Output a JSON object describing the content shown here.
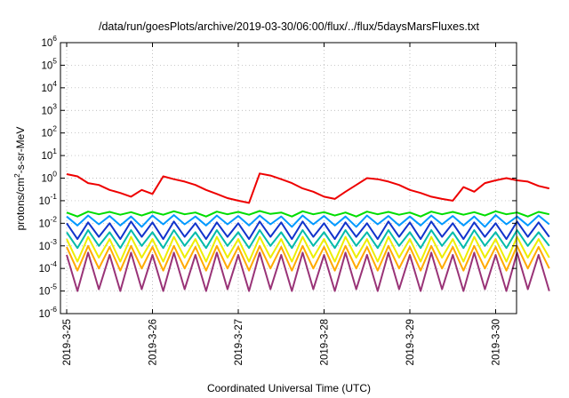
{
  "chart_data": {
    "type": "line",
    "title": "/data/run/goesPlots/archive/2019-03-30/06:00/flux/../flux/5daysMarsFluxes.txt",
    "xlabel": "Coordinated Universal Time (UTC)",
    "ylabel": "protons/cm2-s-sr-MeV",
    "ylabel_parts": {
      "before": "protons/cm",
      "sup": "2",
      "after": "-s-sr-MeV"
    },
    "y_scale": "log",
    "ylim": [
      1e-06,
      1000000.0
    ],
    "y_ticks": [
      {
        "exp": -6,
        "base": "10",
        "sup": "-6"
      },
      {
        "exp": -5,
        "base": "10",
        "sup": "-5"
      },
      {
        "exp": -4,
        "base": "10",
        "sup": "-4"
      },
      {
        "exp": -3,
        "base": "10",
        "sup": "-3"
      },
      {
        "exp": -2,
        "base": "10",
        "sup": "-2"
      },
      {
        "exp": -1,
        "base": "10",
        "sup": "-1"
      },
      {
        "exp": 0,
        "base": "10",
        "sup": "0"
      },
      {
        "exp": 1,
        "base": "10",
        "sup": "1"
      },
      {
        "exp": 2,
        "base": "10",
        "sup": "2"
      },
      {
        "exp": 3,
        "base": "10",
        "sup": "3"
      },
      {
        "exp": 4,
        "base": "10",
        "sup": "4"
      },
      {
        "exp": 5,
        "base": "10",
        "sup": "5"
      },
      {
        "exp": 6,
        "base": "10",
        "sup": "6"
      }
    ],
    "x_ticks": [
      "2019-3-25",
      "2019-3-26",
      "2019-3-27",
      "2019-3-28",
      "2019-3-29",
      "2019-3-30"
    ],
    "xlim": [
      "2019-03-25 00:00",
      "2019-03-30 06:00"
    ],
    "grid": true,
    "legend": "none",
    "sampling": "every 3 hours",
    "series": [
      {
        "color": "#ee0000",
        "values": [
          1.5,
          1.2,
          0.6,
          0.5,
          0.3,
          0.22,
          0.15,
          0.3,
          0.2,
          1.2,
          0.9,
          0.7,
          0.5,
          0.3,
          0.2,
          0.13,
          0.1,
          0.08,
          1.6,
          1.3,
          0.9,
          0.6,
          0.35,
          0.25,
          0.15,
          0.12,
          0.25,
          0.5,
          1.0,
          0.9,
          0.7,
          0.5,
          0.3,
          0.22,
          0.15,
          0.12,
          0.1,
          0.4,
          0.25,
          0.6,
          0.8,
          1.0,
          0.8,
          0.7,
          0.45,
          0.35
        ]
      },
      {
        "color": "#00dd00",
        "values": [
          0.03,
          0.02,
          0.033,
          0.025,
          0.032,
          0.024,
          0.031,
          0.022,
          0.032,
          0.024,
          0.034,
          0.025,
          0.03,
          0.02,
          0.033,
          0.025,
          0.032,
          0.024,
          0.035,
          0.026,
          0.03,
          0.02,
          0.034,
          0.025,
          0.031,
          0.022,
          0.03,
          0.02,
          0.033,
          0.025,
          0.032,
          0.024,
          0.03,
          0.02,
          0.033,
          0.025,
          0.032,
          0.024,
          0.031,
          0.022,
          0.034,
          0.025,
          0.03,
          0.02,
          0.032,
          0.025
        ]
      },
      {
        "color": "#0099ff",
        "values": [
          0.02,
          0.008,
          0.022,
          0.009,
          0.021,
          0.008,
          0.02,
          0.007,
          0.022,
          0.009,
          0.023,
          0.009,
          0.02,
          0.008,
          0.022,
          0.009,
          0.021,
          0.008,
          0.022,
          0.009,
          0.02,
          0.007,
          0.022,
          0.009,
          0.021,
          0.008,
          0.02,
          0.007,
          0.022,
          0.009,
          0.021,
          0.008,
          0.02,
          0.008,
          0.022,
          0.009,
          0.021,
          0.008,
          0.02,
          0.007,
          0.023,
          0.009,
          0.02,
          0.008,
          0.022,
          0.009
        ]
      },
      {
        "color": "#1133cc",
        "values": [
          0.01,
          0.002,
          0.011,
          0.0025,
          0.01,
          0.002,
          0.012,
          0.0025,
          0.011,
          0.002,
          0.012,
          0.0025,
          0.01,
          0.002,
          0.011,
          0.0025,
          0.01,
          0.002,
          0.012,
          0.0025,
          0.011,
          0.002,
          0.012,
          0.0025,
          0.01,
          0.002,
          0.011,
          0.0025,
          0.01,
          0.002,
          0.012,
          0.0025,
          0.011,
          0.002,
          0.012,
          0.0025,
          0.01,
          0.002,
          0.011,
          0.0025,
          0.01,
          0.002,
          0.012,
          0.0025,
          0.011,
          0.0025
        ]
      },
      {
        "color": "#00bbaa",
        "values": [
          0.004,
          0.0008,
          0.005,
          0.001,
          0.004,
          0.0008,
          0.005,
          0.001,
          0.004,
          0.0008,
          0.005,
          0.001,
          0.004,
          0.0008,
          0.005,
          0.001,
          0.004,
          0.0008,
          0.005,
          0.001,
          0.004,
          0.0008,
          0.005,
          0.001,
          0.004,
          0.0008,
          0.005,
          0.001,
          0.004,
          0.0008,
          0.005,
          0.001,
          0.004,
          0.0008,
          0.005,
          0.001,
          0.004,
          0.0008,
          0.005,
          0.001,
          0.004,
          0.0008,
          0.005,
          0.001,
          0.004,
          0.001
        ]
      },
      {
        "color": "#eeee00",
        "values": [
          0.002,
          0.0002,
          0.0025,
          0.0003,
          0.002,
          0.0002,
          0.0025,
          0.0003,
          0.002,
          0.0002,
          0.0025,
          0.0003,
          0.002,
          0.0002,
          0.0025,
          0.0003,
          0.002,
          0.0002,
          0.0025,
          0.0003,
          0.002,
          0.0002,
          0.0025,
          0.0003,
          0.002,
          0.0002,
          0.0025,
          0.0003,
          0.002,
          0.0002,
          0.0025,
          0.0003,
          0.002,
          0.0002,
          0.0025,
          0.0003,
          0.002,
          0.0002,
          0.0025,
          0.0003,
          0.002,
          0.0002,
          0.0025,
          0.0003,
          0.002,
          0.0003
        ]
      },
      {
        "color": "#ffaa00",
        "values": [
          0.0009,
          8e-05,
          0.001,
          0.0001,
          0.0009,
          8e-05,
          0.001,
          0.0001,
          0.0009,
          8e-05,
          0.001,
          0.0001,
          0.0009,
          8e-05,
          0.001,
          0.0001,
          0.0009,
          8e-05,
          0.001,
          0.0001,
          0.0009,
          8e-05,
          0.001,
          0.0001,
          0.0009,
          8e-05,
          0.001,
          0.0001,
          0.0009,
          8e-05,
          0.001,
          0.0001,
          0.0009,
          8e-05,
          0.001,
          0.0001,
          0.0009,
          8e-05,
          0.001,
          0.0001,
          0.0009,
          8e-05,
          0.001,
          0.0001,
          0.0009,
          0.0001
        ]
      },
      {
        "color": "#993377",
        "values": [
          0.0004,
          1e-05,
          0.0005,
          1.2e-05,
          0.0004,
          1e-05,
          0.0005,
          1.2e-05,
          0.0004,
          1e-05,
          0.0005,
          1.2e-05,
          0.0004,
          1e-05,
          0.0005,
          1.2e-05,
          0.0004,
          1e-05,
          0.0005,
          1.2e-05,
          0.0004,
          1e-05,
          0.0005,
          1.2e-05,
          0.0004,
          1e-05,
          0.0005,
          1.2e-05,
          0.0004,
          1e-05,
          0.0005,
          1.2e-05,
          0.0004,
          1e-05,
          0.0005,
          1.2e-05,
          0.0004,
          1e-05,
          0.0005,
          1.2e-05,
          0.0004,
          1e-05,
          0.0005,
          1.2e-05,
          0.0004,
          1e-05
        ]
      }
    ]
  }
}
